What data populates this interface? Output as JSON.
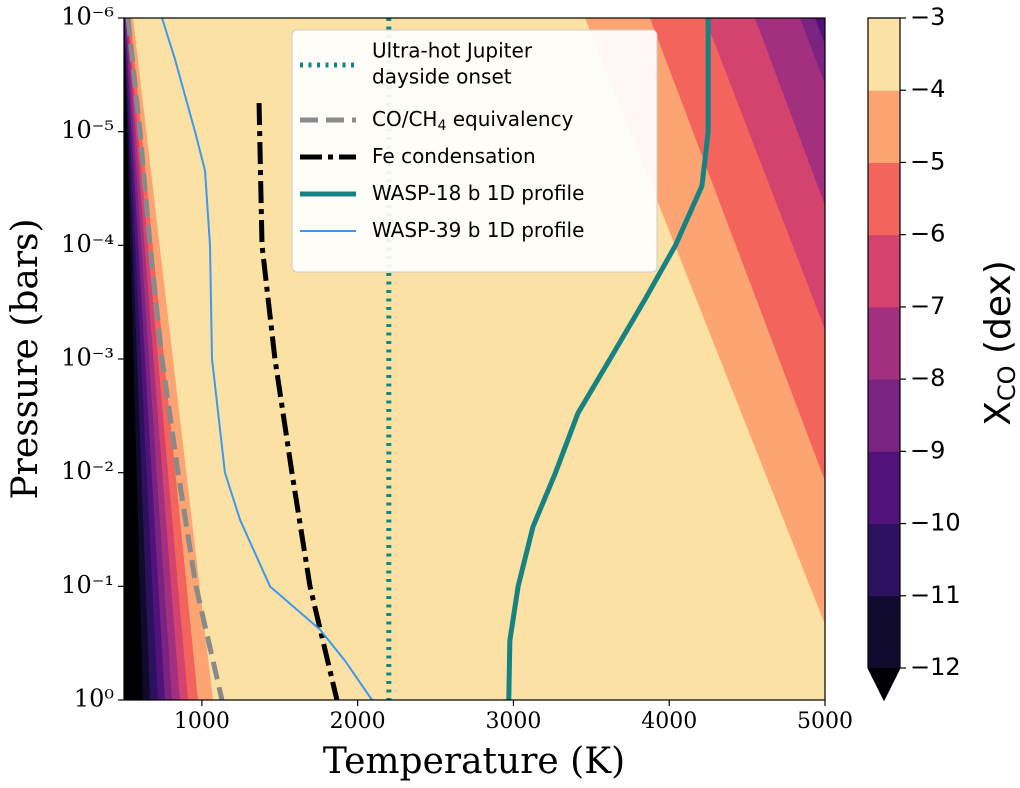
{
  "chart_data": {
    "type": "contour",
    "xlabel": "Temperature (K)",
    "ylabel": "Pressure (bars)",
    "xlim": [
      500,
      5000
    ],
    "xticks": [
      1000,
      2000,
      3000,
      4000,
      5000
    ],
    "ylim": [
      1,
      1e-06
    ],
    "ylog": true,
    "yticks": [
      {
        "value": 1e-06,
        "label": "10⁻⁶"
      },
      {
        "value": 1e-05,
        "label": "10⁻⁵"
      },
      {
        "value": 0.0001,
        "label": "10⁻⁴"
      },
      {
        "value": 0.001,
        "label": "10⁻³"
      },
      {
        "value": 0.01,
        "label": "10⁻²"
      },
      {
        "value": 0.1,
        "label": "10⁻¹"
      },
      {
        "value": 1,
        "label": "10⁰"
      }
    ],
    "colorbar": {
      "label": [
        "X",
        "CO",
        " (dex)"
      ],
      "lim": [
        -12,
        -3
      ],
      "ticks": [
        {
          "value": -3,
          "label": "−3"
        },
        {
          "value": -4,
          "label": "−4"
        },
        {
          "value": -5,
          "label": "−5"
        },
        {
          "value": -6,
          "label": "−6"
        },
        {
          "value": -7,
          "label": "−7"
        },
        {
          "value": -8,
          "label": "−8"
        },
        {
          "value": -9,
          "label": "−9"
        },
        {
          "value": -10,
          "label": "−10"
        },
        {
          "value": -11,
          "label": "−11"
        },
        {
          "value": -12,
          "label": "−12"
        }
      ],
      "colors": [
        "#100b2d",
        "#2c115f",
        "#51127c",
        "#7a2381",
        "#a3307e",
        "#d3436e",
        "#f3655c",
        "#fca572",
        "#fce1a4"
      ],
      "extend_color": "#000004"
    },
    "contours": {
      "p": [
        1e-06,
        1
      ],
      "cold": [
        {
          "level": -4,
          "x": [
            558,
            1071
          ]
        },
        {
          "level": -5,
          "x": [
            539,
            975
          ]
        },
        {
          "level": -6,
          "x": [
            526,
            911
          ]
        },
        {
          "level": -7,
          "x": [
            519,
            859
          ]
        },
        {
          "level": -8,
          "x": [
            513,
            808
          ]
        },
        {
          "level": -9,
          "x": [
            506,
            763
          ]
        },
        {
          "level": -10,
          "x": [
            500,
            718
          ]
        },
        {
          "level": -11,
          "x": [
            500,
            667
          ]
        },
        {
          "level": -12,
          "x": [
            500,
            622
          ]
        }
      ],
      "hot": [
        {
          "level": -4,
          "x": [
            3459,
            5192
          ]
        },
        {
          "level": -5,
          "x": [
            3876,
            5532
          ]
        },
        {
          "level": -6,
          "x": [
            4229,
            5917
          ]
        },
        {
          "level": -7,
          "x": [
            4550,
            6187
          ]
        },
        {
          "level": -8,
          "x": [
            4839,
            6500
          ]
        },
        {
          "level": -9,
          "x": [
            4935,
            6597
          ]
        }
      ]
    },
    "series": [
      {
        "name": [
          "Ultra-hot Jupiter",
          "dayside onset"
        ],
        "color": "#138583",
        "linestyle": "dotted",
        "width": 5,
        "x": [
          2200,
          2200
        ],
        "y": [
          1e-06,
          1
        ]
      },
      {
        "name": [
          "CO/CH",
          "4",
          " equivalency"
        ],
        "color": "#8a8a8a",
        "linestyle": "dashed",
        "width": 5,
        "x": [
          526,
          603,
          667,
          744,
          847,
          962,
          1129
        ],
        "y": [
          1e-06,
          1e-05,
          0.0001,
          0.001,
          0.01,
          0.1,
          1
        ]
      },
      {
        "name": [
          "Fe condensation"
        ],
        "color": "#000000",
        "linestyle": "dashdot",
        "width": 5,
        "x": [
          1367,
          1386,
          1469,
          1578,
          1694,
          1867
        ],
        "y": [
          5.6e-06,
          0.0001,
          0.001,
          0.01,
          0.1,
          1
        ]
      },
      {
        "name": [
          "WASP-18 b 1D profile"
        ],
        "color": "#168382",
        "linestyle": "solid",
        "width": 5,
        "x": [
          4250,
          4250,
          4210,
          4040,
          3844,
          3620,
          3414,
          3270,
          3125,
          3030,
          2977,
          2970
        ],
        "y": [
          1e-06,
          1e-05,
          3e-05,
          0.0001,
          0.0003,
          0.001,
          0.003,
          0.01,
          0.03,
          0.1,
          0.3,
          1
        ]
      },
      {
        "name": [
          "WASP-39 b 1D profile"
        ],
        "color": "#3c99f0",
        "linestyle": "solid",
        "width": 2,
        "x": [
          744,
          827,
          956,
          1020,
          1052,
          1065,
          1148,
          1245,
          1437,
          1758,
          1918,
          2092
        ],
        "y": [
          1e-06,
          2.3e-06,
          1e-05,
          2.2e-05,
          0.0001,
          0.001,
          0.01,
          0.026,
          0.1,
          0.24,
          0.45,
          1
        ]
      }
    ],
    "legend": "upper center"
  }
}
